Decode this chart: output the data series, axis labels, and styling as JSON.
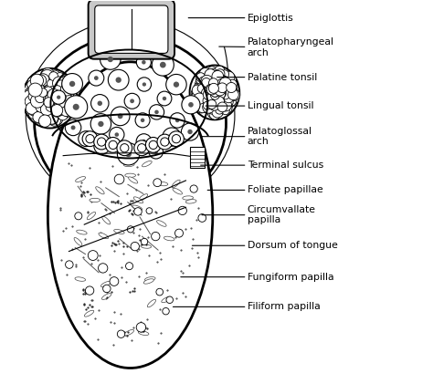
{
  "bg_color": "#ffffff",
  "line_color": "#000000",
  "figsize": [
    4.74,
    4.21
  ],
  "dpi": 100,
  "annotations": [
    {
      "label": "Epiglottis",
      "pt": [
        0.46,
        0.955
      ],
      "txt": [
        0.6,
        0.955
      ]
    },
    {
      "label": "Palatopharyngeal\narch",
      "pt": [
        0.5,
        0.875
      ],
      "txt": [
        0.6,
        0.875
      ]
    },
    {
      "label": "Palatine tonsil",
      "pt": [
        0.5,
        0.79
      ],
      "txt": [
        0.6,
        0.79
      ]
    },
    {
      "label": "Lingual tonsil",
      "pt": [
        0.48,
        0.715
      ],
      "txt": [
        0.6,
        0.715
      ]
    },
    {
      "label": "Palatoglossal\narch",
      "pt": [
        0.46,
        0.63
      ],
      "txt": [
        0.6,
        0.63
      ]
    },
    {
      "label": "Terminal sulcus",
      "pt": [
        0.46,
        0.555
      ],
      "txt": [
        0.6,
        0.555
      ]
    },
    {
      "label": "Foliate papillae",
      "pt": [
        0.455,
        0.495
      ],
      "txt": [
        0.6,
        0.495
      ]
    },
    {
      "label": "Circumvallate\npapilla",
      "pt": [
        0.44,
        0.435
      ],
      "txt": [
        0.6,
        0.435
      ]
    },
    {
      "label": "Dorsum of tongue",
      "pt": [
        0.4,
        0.355
      ],
      "txt": [
        0.6,
        0.355
      ]
    },
    {
      "label": "Fungiform papilla",
      "pt": [
        0.38,
        0.275
      ],
      "txt": [
        0.6,
        0.275
      ]
    },
    {
      "label": "Filiform papilla",
      "pt": [
        0.36,
        0.2
      ],
      "txt": [
        0.6,
        0.2
      ]
    }
  ]
}
